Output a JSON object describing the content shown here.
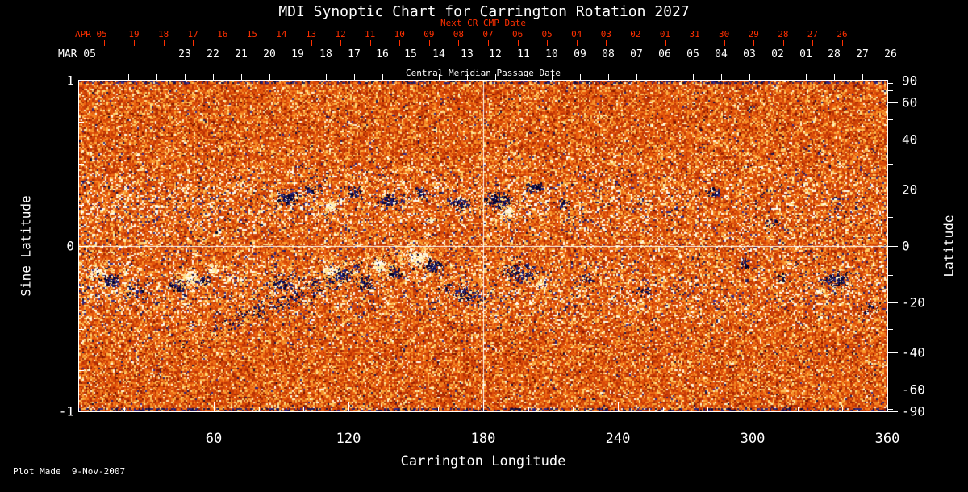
{
  "title": "MDI Synoptic Chart for Carrington Rotation 2027",
  "footer": {
    "plot_made": "Plot Made  9-Nov-2007"
  },
  "colors": {
    "background": "#000000",
    "axis_white": "#ffffff",
    "axis_red": "#ff3000",
    "base_orange": "#e2500a",
    "negative_polarity": "#14144c",
    "positive_polarity": "#fff8e0"
  },
  "top_axes": {
    "next_cr": {
      "label": "Next CR CMP Date",
      "month_label": "APR 05",
      "dates": [
        "19",
        "18",
        "17",
        "16",
        "15",
        "14",
        "13",
        "12",
        "11",
        "10",
        "09",
        "08",
        "07",
        "06",
        "05",
        "04",
        "03",
        "02",
        "01",
        "31",
        "30",
        "29",
        "28",
        "27",
        "26"
      ]
    },
    "cmp": {
      "label": "Central Meridian Passage Date",
      "month_label": "MAR 05",
      "dates": [
        "23",
        "22",
        "21",
        "20",
        "19",
        "18",
        "17",
        "16",
        "15",
        "14",
        "13",
        "12",
        "11",
        "10",
        "09",
        "08",
        "07",
        "06",
        "05",
        "04",
        "03",
        "02",
        "01",
        "28",
        "27",
        "26"
      ]
    }
  },
  "x_axis": {
    "title": "Carrington Longitude",
    "range": [
      0,
      360
    ],
    "major_ticks": [
      60,
      120,
      180,
      240,
      300,
      360
    ],
    "minor_step": 20
  },
  "y_axis_left": {
    "title": "Sine Latitude",
    "range": [
      -1,
      1
    ],
    "major_ticks": [
      1,
      0,
      -1
    ],
    "minor_ticks": [
      0.75,
      0.5,
      0.25,
      -0.25,
      -0.5,
      -0.75
    ]
  },
  "y_axis_right": {
    "title": "Latitude",
    "major_ticks": [
      90,
      60,
      40,
      20,
      0,
      -20,
      -40,
      -60,
      -90
    ],
    "minor_ticks": [
      80,
      70,
      50,
      30,
      10,
      -10,
      -30,
      -50,
      -70,
      -80
    ]
  },
  "chart_data": {
    "type": "heatmap",
    "title": "MDI Synoptic Chart for Carrington Rotation 2027",
    "x_label": "Carrington Longitude",
    "x_range": [
      0,
      360
    ],
    "y_label": "Sine Latitude",
    "y_range": [
      -1,
      1
    ],
    "description": "SOHO/MDI synoptic magnetogram of the solar photospheric magnetic field for Carrington rotation 2027. Background is speckled orange/yellow quiet-sun noise; dark navy clusters are negative-polarity flux and white/pale-yellow blobs are positive-polarity flux, concentrated in activity belts near +-10 to -25 degrees latitude. White reference lines cross at longitude 180 and sine latitude 0. Activity is stronger in the left (0-220 deg) half of the map.",
    "grid_lines": {
      "vertical_at_longitude": 180,
      "horizontal_at_latitude": 0
    },
    "palette_stops": [
      [
        0.0,
        110,
        15,
        0
      ],
      [
        0.1,
        180,
        45,
        5
      ],
      [
        0.6,
        235,
        90,
        12
      ],
      [
        0.85,
        250,
        160,
        50
      ],
      [
        0.95,
        255,
        228,
        135
      ],
      [
        1.0,
        255,
        255,
        245
      ]
    ],
    "noise": {
      "seed": 20270,
      "navy_base_prob": 0.015,
      "belt_navy_prob": 0.05,
      "belt_center_abs_sin": 0.25,
      "belt_sigma": 0.22,
      "belt_brighten": 0.18,
      "pole_navy_boost": 0.35
    },
    "region_format": [
      "longitude_deg",
      "latitude_deg",
      "sigma_x_px",
      "sigma_y_px",
      "tilt_deg",
      "dot_count",
      "negative_fraction"
    ],
    "active_regions": [
      [
        8,
        -9,
        5,
        4,
        0,
        120,
        0.15
      ],
      [
        14,
        -12,
        5,
        4,
        0,
        90,
        0.9
      ],
      [
        24,
        -16,
        9,
        4,
        -15,
        50,
        0.85
      ],
      [
        44,
        -14,
        5,
        4,
        0,
        90,
        0.9
      ],
      [
        49,
        -11,
        4.5,
        4,
        0,
        130,
        0.06
      ],
      [
        60,
        -8,
        3.5,
        3,
        0,
        60,
        0.1
      ],
      [
        56,
        -12,
        4,
        3,
        0,
        50,
        0.85
      ],
      [
        94,
        -18,
        60,
        6,
        -24,
        340,
        0.88
      ],
      [
        90,
        -13,
        8,
        5,
        0,
        90,
        0.85
      ],
      [
        112,
        -8,
        4,
        3.5,
        0,
        90,
        0.08
      ],
      [
        118,
        -10,
        5,
        4,
        0,
        90,
        0.9
      ],
      [
        127,
        -13,
        5,
        4,
        0,
        60,
        0.85
      ],
      [
        134,
        -7,
        4.5,
        4,
        0,
        110,
        0.08
      ],
      [
        141,
        -9,
        4.5,
        4,
        0,
        80,
        0.85
      ],
      [
        150,
        -4,
        6,
        5,
        0,
        220,
        0.05
      ],
      [
        158,
        -7,
        5,
        4,
        0,
        110,
        0.9
      ],
      [
        172,
        -17,
        14,
        5,
        20,
        140,
        0.88
      ],
      [
        196,
        -9,
        11,
        5,
        0,
        160,
        0.82
      ],
      [
        206,
        -13,
        3,
        2.5,
        0,
        45,
        0.1
      ],
      [
        226,
        -11,
        4,
        3,
        0,
        45,
        0.85
      ],
      [
        252,
        -16,
        6,
        4,
        0,
        35,
        0.8
      ],
      [
        296,
        -6,
        3,
        2.5,
        0,
        40,
        0.85
      ],
      [
        313,
        -11,
        4,
        3,
        0,
        35,
        0.8
      ],
      [
        337,
        -12,
        8,
        5,
        0,
        150,
        0.88
      ],
      [
        330,
        -16,
        2.5,
        2,
        0,
        30,
        0.15
      ],
      [
        352,
        -22,
        7,
        4,
        0,
        40,
        0.8
      ],
      [
        62,
        5,
        2,
        2,
        0,
        25,
        0.1
      ],
      [
        93,
        17,
        7,
        4,
        0,
        120,
        0.9
      ],
      [
        104,
        20,
        5,
        3,
        0,
        60,
        0.85
      ],
      [
        112,
        14,
        3.5,
        3,
        0,
        80,
        0.1
      ],
      [
        122,
        19,
        5,
        3.5,
        0,
        60,
        0.85
      ],
      [
        138,
        16,
        7,
        4,
        -10,
        110,
        0.88
      ],
      [
        152,
        19,
        4,
        3,
        0,
        50,
        0.85
      ],
      [
        156,
        9,
        2.5,
        2,
        0,
        40,
        0.12
      ],
      [
        170,
        15,
        6,
        4,
        0,
        90,
        0.88
      ],
      [
        186,
        16,
        8,
        5,
        0,
        190,
        0.88
      ],
      [
        191,
        12,
        3.5,
        3,
        0,
        80,
        0.08
      ],
      [
        203,
        21,
        6,
        3,
        0,
        70,
        0.85
      ],
      [
        216,
        15,
        3,
        2.5,
        0,
        40,
        0.85
      ],
      [
        283,
        19,
        5,
        3,
        0,
        30,
        0.8
      ],
      [
        308,
        8,
        5,
        3,
        0,
        35,
        0.8
      ]
    ]
  }
}
